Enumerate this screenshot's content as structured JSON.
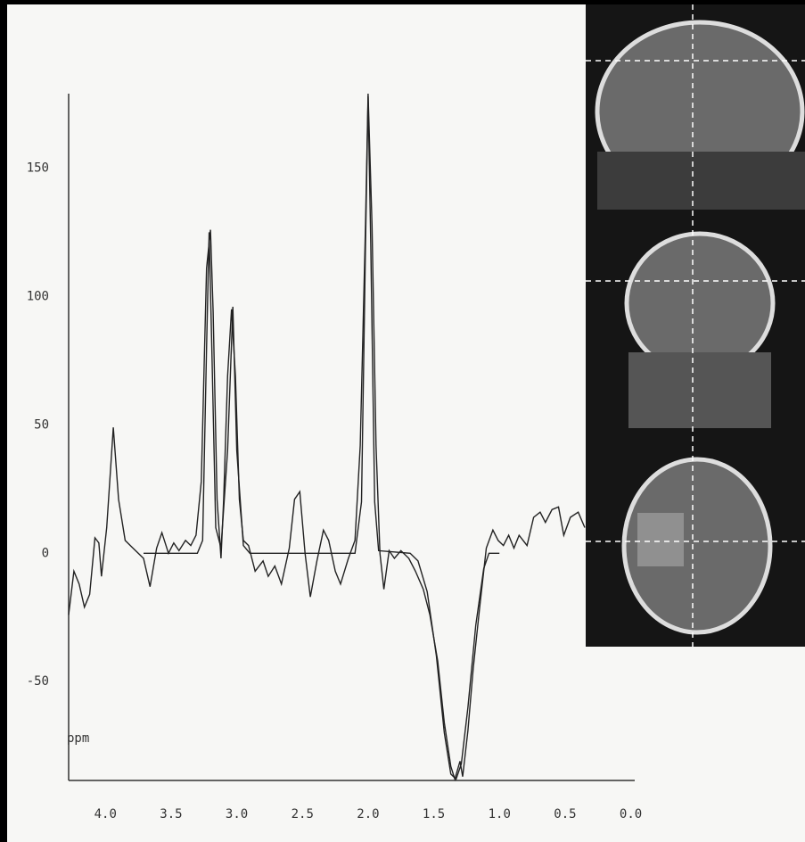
{
  "chart_data": {
    "type": "line",
    "axis_label": "ppm",
    "xlim": [
      4.28,
      -0.03
    ],
    "ylim": [
      -88.5,
      179
    ],
    "xticks": [
      {
        "value": 4,
        "label": "4.0"
      },
      {
        "value": 3.5,
        "label": "3.5"
      },
      {
        "value": 3,
        "label": "3.0"
      },
      {
        "value": 2.5,
        "label": "2.5"
      },
      {
        "value": 2,
        "label": "2.0"
      },
      {
        "value": 1.5,
        "label": "1.5"
      },
      {
        "value": 1,
        "label": "1.0"
      },
      {
        "value": 0.5,
        "label": "0.5"
      },
      {
        "value": 0,
        "label": "0.0"
      }
    ],
    "yticks": [
      -50,
      0,
      50,
      100,
      150
    ],
    "series": [
      {
        "color": "#222222",
        "x": [
          4.28,
          4.24,
          4.2,
          4.16,
          4.12,
          4.08,
          4.05,
          4.03,
          3.99,
          3.94,
          3.9,
          3.85,
          3.81,
          3.77,
          3.71,
          3.66,
          3.61,
          3.57,
          3.52,
          3.48,
          3.44,
          3.39,
          3.35,
          3.31,
          3.27,
          3.23,
          3.2,
          3.18,
          3.15,
          3.12,
          3.1,
          3.07,
          3.04,
          3.01,
          2.98,
          2.95,
          2.91,
          2.86,
          2.8,
          2.76,
          2.71,
          2.66,
          2.6,
          2.56,
          2.52,
          2.48,
          2.44,
          2.39,
          2.34,
          2.3,
          2.25,
          2.21,
          2.15,
          2.1,
          2.06,
          2.02,
          2.0,
          1.97,
          1.94,
          1.91,
          1.88,
          1.84,
          1.8,
          1.75,
          1.69,
          1.64,
          1.58,
          1.53,
          1.47,
          1.42,
          1.37,
          1.34,
          1.3,
          1.28,
          1.24,
          1.2,
          1.15,
          1.1,
          1.05,
          1.01,
          0.97,
          0.93,
          0.89,
          0.85,
          0.79,
          0.74,
          0.69,
          0.65,
          0.6,
          0.55,
          0.51,
          0.46,
          0.4,
          0.35
        ],
        "values": [
          -24,
          -7,
          -12,
          -21,
          -16,
          6,
          4,
          -9,
          10,
          49,
          21,
          5,
          3,
          1,
          -2,
          -13,
          2,
          8,
          0,
          4,
          1,
          5,
          3,
          7,
          28,
          111,
          126,
          94,
          21,
          -2,
          21,
          69,
          95,
          69,
          21,
          5,
          3,
          -7,
          -3,
          -9,
          -5,
          -12,
          2,
          21,
          24,
          0,
          -17,
          -3,
          9,
          5,
          -7,
          -12,
          -2,
          5,
          42,
          128,
          179,
          128,
          42,
          0,
          -14,
          1,
          -2,
          1,
          -2,
          -7,
          -14,
          -24,
          -42,
          -66,
          -83,
          -88,
          -81,
          -87,
          -69,
          -45,
          -21,
          2,
          9,
          5,
          3,
          7,
          2,
          7,
          3,
          14,
          16,
          12,
          17,
          18,
          7,
          14,
          16,
          10
        ]
      },
      {
        "color": "#222222",
        "x": [
          3.71,
          3.3,
          3.26,
          3.23,
          3.21,
          3.19,
          3.16,
          3.12,
          3.07,
          3.03,
          3.0,
          2.95,
          2.9,
          2.1,
          2.05,
          2.02,
          2.0,
          1.98,
          1.95,
          1.92,
          1.68,
          1.62,
          1.55,
          1.48,
          1.42,
          1.37,
          1.33,
          1.29,
          1.24,
          1.18,
          1.12,
          1.08,
          1.0
        ],
        "values": [
          0,
          0,
          5,
          80,
          125,
          80,
          10,
          2,
          40,
          96,
          40,
          3,
          0,
          0,
          20,
          120,
          178,
          120,
          20,
          1,
          0,
          -3,
          -15,
          -40,
          -70,
          -86,
          -88,
          -82,
          -60,
          -28,
          -6,
          0,
          0
        ]
      }
    ]
  }
}
